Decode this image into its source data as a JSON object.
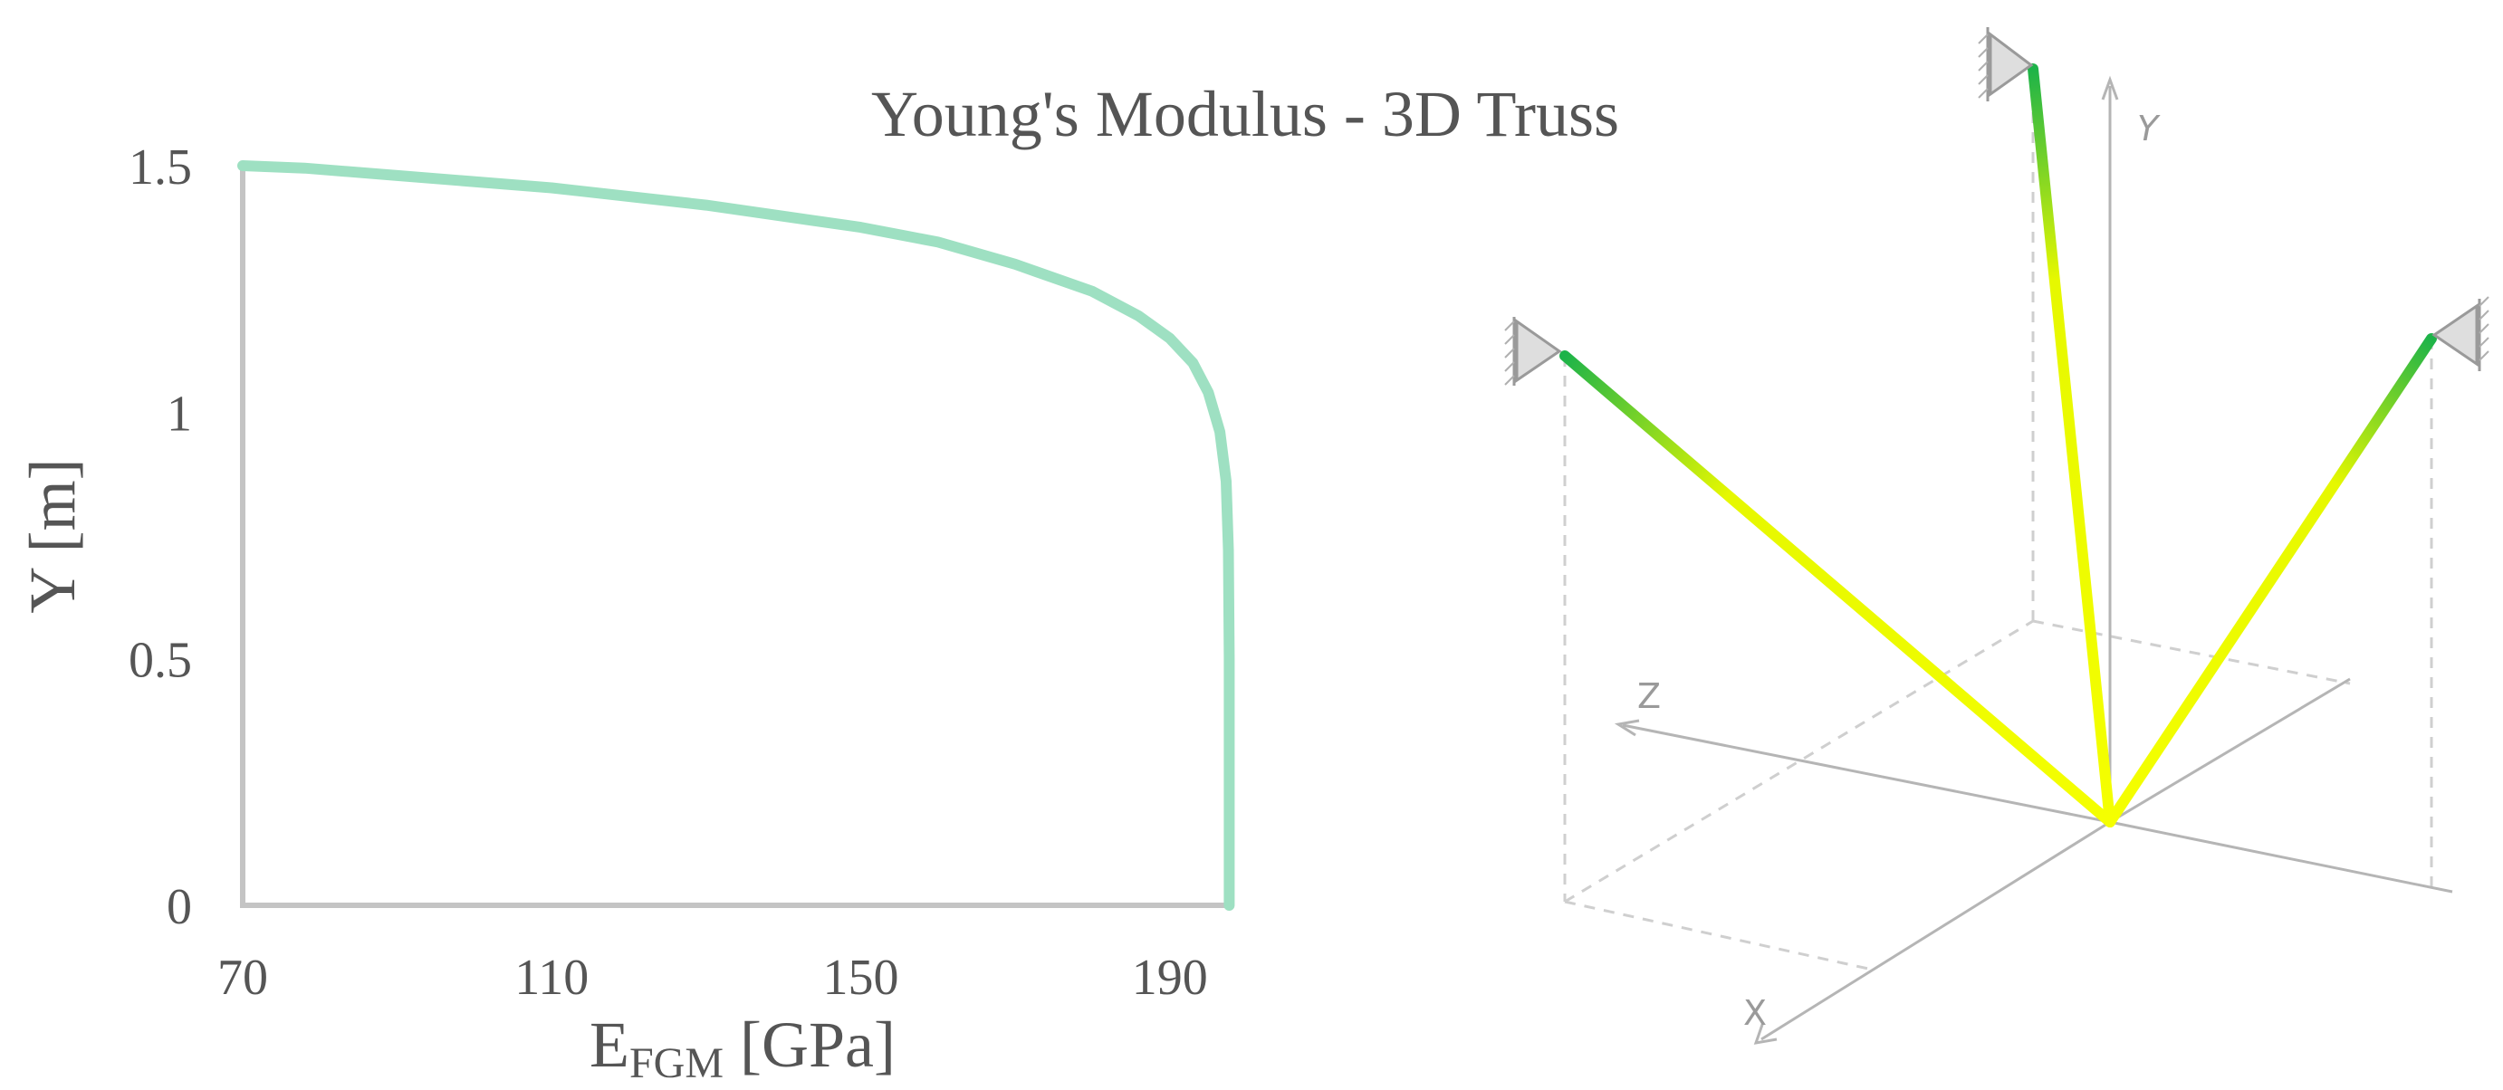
{
  "title": "Young's Modulus - 3D Truss",
  "chart_data": {
    "type": "line",
    "xlabel_main": "E",
    "xlabel_sub": "FGM",
    "xlabel_unit": " [GPa]",
    "ylabel": "Y [m]",
    "xlim": [
      70,
      200
    ],
    "ylim": [
      0,
      1.5
    ],
    "x_ticks": [
      "70",
      "110",
      "150",
      "190"
    ],
    "x_tick_values": [
      70,
      110,
      150,
      190
    ],
    "y_ticks": [
      "0",
      "0.5",
      "1",
      "1.5"
    ],
    "y_tick_values": [
      0,
      0.5,
      1,
      1.5
    ],
    "grid": false,
    "series": [
      {
        "color": "#9ee0c2",
        "points": [
          [
            70,
            1.5
          ],
          [
            78,
            1.495
          ],
          [
            90,
            1.48
          ],
          [
            110,
            1.455
          ],
          [
            130,
            1.42
          ],
          [
            150,
            1.375
          ],
          [
            160,
            1.345
          ],
          [
            170,
            1.3
          ],
          [
            180,
            1.245
          ],
          [
            186,
            1.195
          ],
          [
            190,
            1.15
          ],
          [
            193,
            1.1
          ],
          [
            195,
            1.04
          ],
          [
            196.5,
            0.96
          ],
          [
            197.3,
            0.86
          ],
          [
            197.6,
            0.72
          ],
          [
            197.7,
            0.5
          ],
          [
            197.7,
            0.2
          ],
          [
            197.7,
            0
          ]
        ]
      }
    ]
  },
  "diagram": {
    "axis_labels": {
      "x": "X",
      "y": "Y",
      "z": "Z"
    },
    "colors": {
      "axis": "#b5b5b5",
      "dashed": "#cfcfcf",
      "member_top": "#1db349",
      "member_bottom": "#f5ff00",
      "support": "#dcdcdc"
    }
  }
}
